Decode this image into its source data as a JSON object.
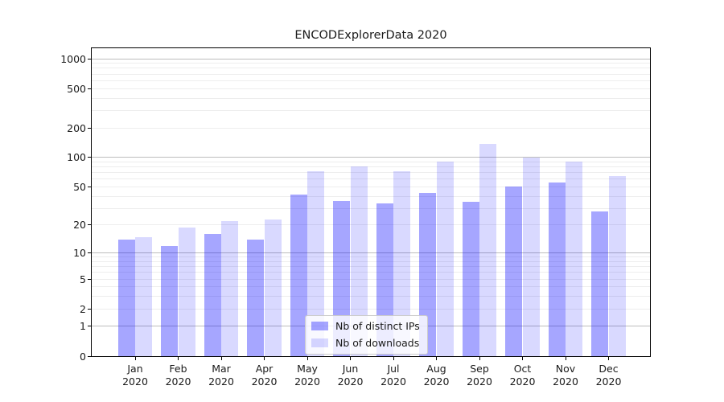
{
  "chart_data": {
    "type": "bar",
    "title": "ENCODExplorerData 2020",
    "categories": [
      "Jan",
      "Feb",
      "Mar",
      "Apr",
      "May",
      "Jun",
      "Jul",
      "Aug",
      "Sep",
      "Oct",
      "Nov",
      "Dec"
    ],
    "year_label": "2020",
    "series": [
      {
        "name": "Nb of distinct IPs",
        "color": "rgba(0,0,255,0.35)",
        "hex_over_white": "#a6a6ff",
        "values": [
          14,
          12,
          16,
          14,
          42,
          36,
          34,
          43,
          35,
          50,
          55,
          28
        ]
      },
      {
        "name": "Nb of downloads",
        "color": "rgba(0,0,255,0.15)",
        "hex_over_white": "#d9d9ff",
        "values": [
          15,
          19,
          22,
          23,
          73,
          81,
          72,
          91,
          137,
          99,
          90,
          65
        ]
      }
    ],
    "yscale": "log1p",
    "yticks": [
      0,
      1,
      2,
      5,
      10,
      20,
      50,
      100,
      200,
      500,
      1000
    ],
    "ylim": [
      0,
      1275
    ],
    "grid": true,
    "gridline_major_values": [
      1,
      10,
      100,
      1000
    ],
    "legend_position": "lower center"
  }
}
